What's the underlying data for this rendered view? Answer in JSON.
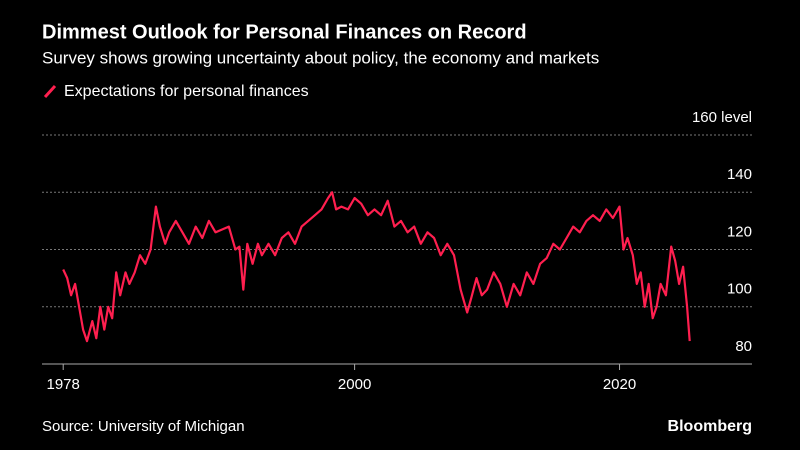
{
  "chart_data": {
    "type": "line",
    "title": "Dimmest Outlook for Personal Finances on Record",
    "subtitle": "Survey shows growing uncertainty about policy, the economy and markets",
    "source": "Source: University of Michigan",
    "brand": "Bloomberg",
    "x": [
      1978.0,
      1978.3,
      1978.6,
      1978.9,
      1979.2,
      1979.5,
      1979.8,
      1980.2,
      1980.5,
      1980.8,
      1981.1,
      1981.4,
      1981.7,
      1982.0,
      1982.3,
      1982.7,
      1983.0,
      1983.4,
      1983.8,
      1984.2,
      1984.6,
      1985.0,
      1985.3,
      1985.7,
      1986.0,
      1986.5,
      1987.0,
      1987.5,
      1988.0,
      1988.5,
      1989.0,
      1989.5,
      1990.0,
      1990.5,
      1991.0,
      1991.3,
      1991.6,
      1991.9,
      1992.3,
      1992.7,
      1993.0,
      1993.5,
      1994.0,
      1994.5,
      1995.0,
      1995.5,
      1996.0,
      1996.5,
      1997.0,
      1997.5,
      1998.0,
      1998.3,
      1998.6,
      1999.0,
      1999.5,
      2000.0,
      2000.5,
      2001.0,
      2001.5,
      2002.0,
      2002.5,
      2003.0,
      2003.5,
      2004.0,
      2004.5,
      2005.0,
      2005.5,
      2006.0,
      2006.5,
      2007.0,
      2007.5,
      2008.0,
      2008.5,
      2008.8,
      2009.2,
      2009.6,
      2010.0,
      2010.5,
      2011.0,
      2011.5,
      2012.0,
      2012.5,
      2013.0,
      2013.5,
      2014.0,
      2014.5,
      2015.0,
      2015.5,
      2016.0,
      2016.5,
      2017.0,
      2017.5,
      2018.0,
      2018.5,
      2019.0,
      2019.5,
      2020.0,
      2020.3,
      2020.6,
      2021.0,
      2021.3,
      2021.6,
      2021.9,
      2022.2,
      2022.5,
      2022.8,
      2023.1,
      2023.5,
      2023.9,
      2024.2,
      2024.5,
      2024.8,
      2025.1,
      2025.3
    ],
    "series": [
      {
        "name": "Expectations for personal finances",
        "color": "#ff1f4f",
        "values": [
          113,
          110,
          104,
          108,
          100,
          92,
          88,
          95,
          89,
          100,
          92,
          100,
          96,
          112,
          104,
          112,
          108,
          112,
          118,
          115,
          120,
          135,
          128,
          122,
          126,
          130,
          126,
          122,
          128,
          124,
          130,
          126,
          127,
          128,
          120,
          121,
          106,
          122,
          115,
          122,
          118,
          122,
          118,
          124,
          126,
          122,
          128,
          130,
          132,
          134,
          138,
          140,
          134,
          135,
          134,
          138,
          136,
          132,
          134,
          132,
          137,
          128,
          130,
          126,
          128,
          122,
          126,
          124,
          118,
          122,
          118,
          106,
          98,
          103,
          110,
          104,
          106,
          112,
          108,
          100,
          108,
          104,
          112,
          108,
          115,
          117,
          122,
          120,
          124,
          128,
          126,
          130,
          132,
          130,
          134,
          131,
          135,
          120,
          124,
          118,
          108,
          112,
          100,
          108,
          96,
          100,
          108,
          104,
          121,
          116,
          108,
          114,
          100,
          88
        ]
      }
    ],
    "xlim": [
      1976.4,
      2030
    ],
    "xticks": [
      1978,
      2000,
      2020
    ],
    "ylim": [
      80,
      160
    ],
    "yticks": [
      80,
      100,
      120,
      140,
      {
        "value": 160,
        "label": "160 level"
      }
    ],
    "grid": true
  }
}
